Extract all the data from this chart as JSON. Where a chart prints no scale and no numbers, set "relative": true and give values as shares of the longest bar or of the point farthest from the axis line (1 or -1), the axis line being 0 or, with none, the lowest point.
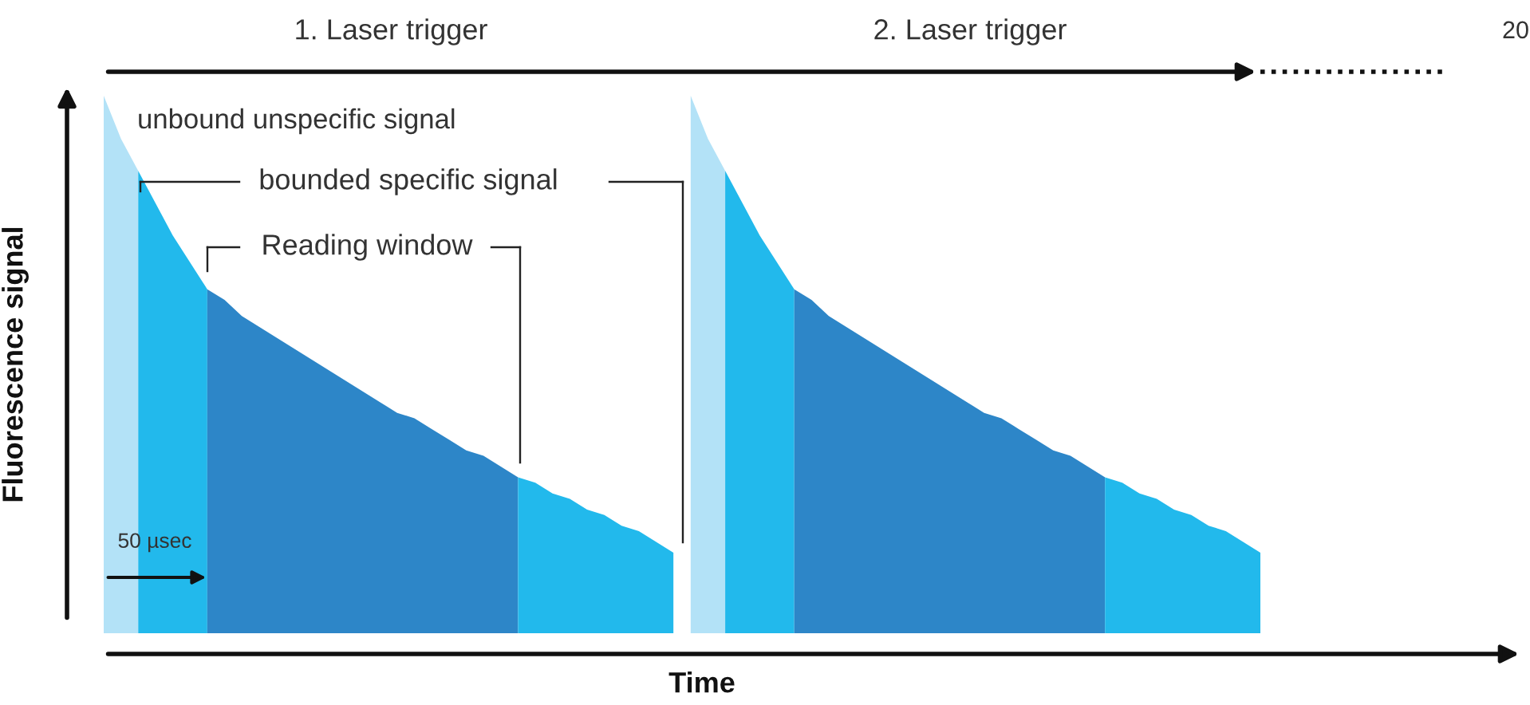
{
  "chart_data": {
    "type": "area",
    "relative": true,
    "grid": false,
    "xlabel": "Time",
    "ylabel": "Fluorescence signal",
    "categories": [
      null,
      null,
      null,
      null,
      null,
      null,
      null,
      null,
      null,
      null,
      null,
      null,
      null,
      null,
      null,
      null,
      null,
      null,
      null,
      null,
      null,
      null,
      null,
      null,
      null,
      null,
      null,
      null,
      null,
      null,
      null,
      null,
      null,
      null,
      null,
      null,
      null,
      null,
      null,
      null,
      null,
      null,
      null,
      null,
      null,
      null,
      null,
      null,
      null,
      null,
      null,
      null,
      null,
      null,
      null,
      null,
      null,
      null,
      null,
      null,
      null,
      null,
      null,
      null,
      null,
      null,
      null,
      null
    ],
    "series": [
      {
        "color": "#b3e2f7",
        "values": [
          1.0,
          0.92,
          0.86,
          null,
          null,
          null,
          null,
          null,
          null,
          null,
          null,
          null,
          null,
          null,
          null,
          null,
          null,
          null,
          null,
          null,
          null,
          null,
          null,
          null,
          null,
          null,
          null,
          null,
          null,
          null,
          null,
          null,
          null,
          null,
          null,
          null,
          null,
          null,
          null,
          null,
          null,
          null,
          null,
          null,
          null,
          null,
          null,
          null,
          null,
          null,
          null,
          null,
          null,
          null,
          null,
          null,
          null,
          null,
          null,
          null,
          null,
          null,
          null,
          null,
          null,
          null,
          null,
          null
        ]
      },
      {
        "color": "#22b9ec",
        "values": [
          null,
          null,
          0.86,
          0.8,
          0.74,
          0.69,
          0.64,
          null,
          null,
          null,
          null,
          null,
          null,
          null,
          null,
          null,
          null,
          null,
          null,
          null,
          null,
          null,
          null,
          null,
          null,
          null,
          null,
          null,
          null,
          null,
          null,
          null,
          null,
          null,
          null,
          null,
          null,
          null,
          null,
          null,
          null,
          null,
          null,
          null,
          null,
          null,
          null,
          null,
          null,
          null,
          null,
          null,
          null,
          null,
          null,
          null,
          null,
          null,
          null,
          null,
          null,
          null,
          null,
          null,
          null,
          null,
          null,
          null
        ]
      },
      {
        "color": "#2d86c8",
        "values": [
          null,
          null,
          null,
          null,
          null,
          null,
          0.64,
          0.62,
          0.59,
          0.57,
          0.55,
          0.53,
          0.51,
          0.49,
          0.47,
          0.45,
          0.43,
          0.41,
          0.4,
          0.38,
          0.36,
          0.34,
          0.33,
          0.31,
          0.29,
          null,
          null,
          null,
          null,
          null,
          null,
          null,
          null,
          null,
          null,
          null,
          null,
          null,
          null,
          null,
          null,
          null,
          null,
          null,
          null,
          null,
          null,
          null,
          null,
          null,
          null,
          null,
          null,
          null,
          null,
          null,
          null,
          null,
          null,
          null,
          null,
          null,
          null,
          null,
          null,
          null,
          null,
          null
        ]
      },
      {
        "color": "#22b9ec",
        "values": [
          null,
          null,
          null,
          null,
          null,
          null,
          null,
          null,
          null,
          null,
          null,
          null,
          null,
          null,
          null,
          null,
          null,
          null,
          null,
          null,
          null,
          null,
          null,
          null,
          0.29,
          0.28,
          0.26,
          0.25,
          0.23,
          0.22,
          0.2,
          0.19,
          0.17,
          0.15,
          null,
          null,
          null,
          null,
          null,
          null,
          null,
          null,
          null,
          null,
          null,
          null,
          null,
          null,
          null,
          null,
          null,
          null,
          null,
          null,
          null,
          null,
          null,
          null,
          null,
          null,
          null,
          null,
          null,
          null,
          null,
          null,
          null,
          null
        ]
      },
      {
        "color": "#b3e2f7",
        "values": [
          null,
          null,
          null,
          null,
          null,
          null,
          null,
          null,
          null,
          null,
          null,
          null,
          null,
          null,
          null,
          null,
          null,
          null,
          null,
          null,
          null,
          null,
          null,
          null,
          null,
          null,
          null,
          null,
          null,
          null,
          null,
          null,
          null,
          null,
          1.0,
          0.92,
          0.86,
          null,
          null,
          null,
          null,
          null,
          null,
          null,
          null,
          null,
          null,
          null,
          null,
          null,
          null,
          null,
          null,
          null,
          null,
          null,
          null,
          null,
          null,
          null,
          null,
          null,
          null,
          null,
          null,
          null,
          null,
          null
        ]
      },
      {
        "color": "#22b9ec",
        "values": [
          null,
          null,
          null,
          null,
          null,
          null,
          null,
          null,
          null,
          null,
          null,
          null,
          null,
          null,
          null,
          null,
          null,
          null,
          null,
          null,
          null,
          null,
          null,
          null,
          null,
          null,
          null,
          null,
          null,
          null,
          null,
          null,
          null,
          null,
          null,
          null,
          0.86,
          0.8,
          0.74,
          0.69,
          0.64,
          null,
          null,
          null,
          null,
          null,
          null,
          null,
          null,
          null,
          null,
          null,
          null,
          null,
          null,
          null,
          null,
          null,
          null,
          null,
          null,
          null,
          null,
          null,
          null,
          null,
          null,
          null
        ]
      },
      {
        "color": "#2d86c8",
        "values": [
          null,
          null,
          null,
          null,
          null,
          null,
          null,
          null,
          null,
          null,
          null,
          null,
          null,
          null,
          null,
          null,
          null,
          null,
          null,
          null,
          null,
          null,
          null,
          null,
          null,
          null,
          null,
          null,
          null,
          null,
          null,
          null,
          null,
          null,
          null,
          null,
          null,
          null,
          null,
          null,
          0.64,
          0.62,
          0.59,
          0.57,
          0.55,
          0.53,
          0.51,
          0.49,
          0.47,
          0.45,
          0.43,
          0.41,
          0.4,
          0.38,
          0.36,
          0.34,
          0.33,
          0.31,
          0.29,
          null,
          null,
          null,
          null,
          null,
          null,
          null,
          null,
          null
        ]
      },
      {
        "color": "#22b9ec",
        "values": [
          null,
          null,
          null,
          null,
          null,
          null,
          null,
          null,
          null,
          null,
          null,
          null,
          null,
          null,
          null,
          null,
          null,
          null,
          null,
          null,
          null,
          null,
          null,
          null,
          null,
          null,
          null,
          null,
          null,
          null,
          null,
          null,
          null,
          null,
          null,
          null,
          null,
          null,
          null,
          null,
          null,
          null,
          null,
          null,
          null,
          null,
          null,
          null,
          null,
          null,
          null,
          null,
          null,
          null,
          null,
          null,
          null,
          null,
          0.29,
          0.28,
          0.26,
          0.25,
          0.23,
          0.22,
          0.2,
          0.19,
          0.17,
          0.15
        ]
      }
    ],
    "annotations": [
      "1. Laser trigger",
      "2. Laser trigger",
      "20",
      "unbound unspecific signal",
      "bounded specific signal",
      "Reading window",
      "50 µsec"
    ]
  }
}
